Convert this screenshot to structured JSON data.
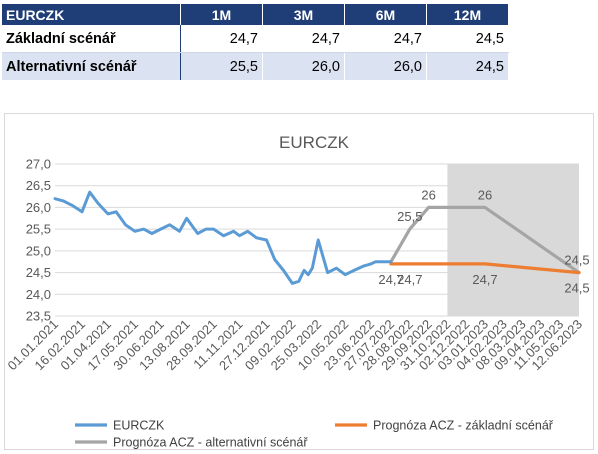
{
  "table": {
    "header": [
      "EURCZK",
      "1M",
      "3M",
      "6M",
      "12M"
    ],
    "rows": [
      {
        "label": "Základní scénář",
        "values": [
          "24,7",
          "24,7",
          "24,7",
          "24,5"
        ]
      },
      {
        "label": "Alternativní scénář",
        "values": [
          "25,5",
          "26,0",
          "26,0",
          "24,5"
        ]
      }
    ]
  },
  "colors": {
    "table_header": "#1f3e78",
    "eurczk": "#5b9bd5",
    "base": "#ed7d31",
    "alt": "#a5a5a5",
    "shade": "#d9d9d9",
    "grid": "#d9d9d9"
  },
  "chart_data": {
    "type": "line",
    "title": "EURCZK",
    "xlabel": "",
    "ylabel": "",
    "ylim": [
      23.5,
      27.0
    ],
    "y_ticks": [
      "23,5",
      "24,0",
      "24,5",
      "25,0",
      "25,5",
      "26,0",
      "26,5",
      "27,0"
    ],
    "x_ticks": [
      "01.01.2021",
      "16.02.2021",
      "01.04.2021",
      "17.05.2021",
      "30.06.2021",
      "13.08.2021",
      "28.09.2021",
      "11.11.2021",
      "27.12.2021",
      "09.02.2022",
      "25.03.2022",
      "10.05.2022",
      "23.06.2022",
      "27.07.2022",
      "28.08.2022",
      "29.09.2022",
      "31.10.2022",
      "02.12.2022",
      "03.01.2023",
      "04.02.2023",
      "08.03.2023",
      "09.04.2023",
      "11.05.2023",
      "12.06.2023"
    ],
    "shaded_region": {
      "from": "31.10.2022",
      "to": "12.06.2023"
    },
    "legend": {
      "position": "bottom"
    },
    "series": [
      {
        "name": "EURCZK",
        "x": [
          "01.01.2021",
          "15.01.2021",
          "30.01.2021",
          "16.02.2021",
          "01.03.2021",
          "15.03.2021",
          "01.04.2021",
          "15.04.2021",
          "01.05.2021",
          "17.05.2021",
          "01.06.2021",
          "15.06.2021",
          "30.06.2021",
          "15.07.2021",
          "01.08.2021",
          "13.08.2021",
          "01.09.2021",
          "15.09.2021",
          "28.09.2021",
          "15.10.2021",
          "01.11.2021",
          "11.11.2021",
          "25.11.2021",
          "10.12.2021",
          "27.12.2021",
          "10.01.2022",
          "25.01.2022",
          "09.02.2022",
          "20.02.2022",
          "01.03.2022",
          "08.03.2022",
          "15.03.2022",
          "25.03.2022",
          "10.04.2022",
          "25.04.2022",
          "10.05.2022",
          "25.05.2022",
          "10.06.2022",
          "23.06.2022",
          "01.07.2022",
          "15.07.2022",
          "27.07.2022"
        ],
        "values": [
          26.2,
          26.15,
          26.05,
          25.9,
          26.35,
          26.1,
          25.85,
          25.9,
          25.6,
          25.45,
          25.5,
          25.4,
          25.5,
          25.6,
          25.45,
          25.75,
          25.4,
          25.5,
          25.5,
          25.35,
          25.45,
          25.35,
          25.45,
          25.3,
          25.25,
          24.8,
          24.55,
          24.25,
          24.3,
          24.55,
          24.45,
          24.6,
          25.25,
          24.5,
          24.6,
          24.45,
          24.55,
          24.65,
          24.7,
          24.75,
          24.75,
          24.75
        ]
      },
      {
        "name": "Prognóza ACZ - základní scénář",
        "x": [
          "27.07.2022",
          "28.08.2022",
          "31.10.2022",
          "03.01.2023",
          "12.06.2023"
        ],
        "values": [
          24.7,
          24.7,
          24.7,
          24.7,
          24.5
        ],
        "labels": [
          "24,7",
          "24,7",
          "",
          "24,7",
          "24,5"
        ]
      },
      {
        "name": "Prognóza ACZ - alternativní scénář",
        "x": [
          "27.07.2022",
          "28.08.2022",
          "29.09.2022",
          "31.10.2022",
          "03.01.2023",
          "12.06.2023"
        ],
        "values": [
          24.75,
          25.5,
          26.0,
          26.0,
          26.0,
          24.5
        ],
        "labels": [
          "",
          "25,5",
          "26",
          "",
          "26",
          "24,5"
        ]
      }
    ]
  }
}
